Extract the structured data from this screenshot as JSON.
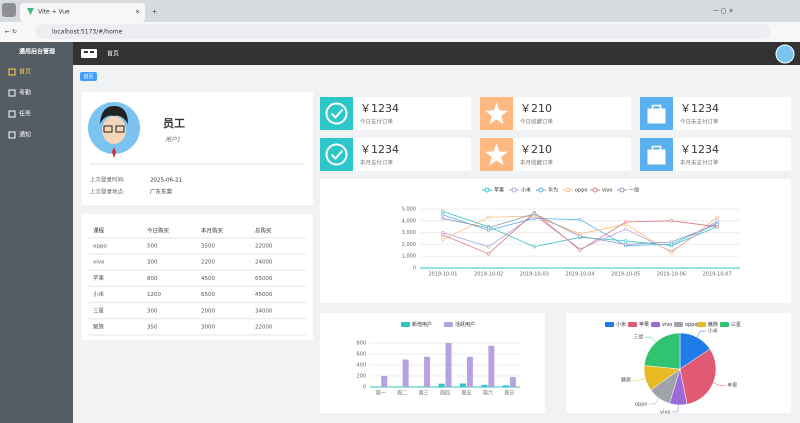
{
  "browser": {
    "tab_title": "Vite + Vue",
    "url": "localhost:5173/#/home"
  },
  "sidebar": {
    "title": "通用后台管理",
    "menu": [
      "首页",
      "考勤",
      "任务",
      "通知"
    ]
  },
  "header": {
    "breadcrumb": "首页"
  },
  "tag": "首页",
  "user": {
    "name": "员工",
    "role": "用户1",
    "info": [
      {
        "label": "上次登录时间:",
        "value": "2025-06-21"
      },
      {
        "label": "上次登录地点:",
        "value": "广东东莞"
      }
    ]
  },
  "table": {
    "columns": [
      "课程",
      "今日购买",
      "本月购买",
      "总购买"
    ],
    "rows": [
      [
        "oppo",
        500,
        3500,
        22000
      ],
      [
        "vivo",
        300,
        2200,
        24000
      ],
      [
        "苹果",
        800,
        4500,
        65000
      ],
      [
        "小米",
        1200,
        6500,
        45000
      ],
      [
        "三星",
        300,
        2000,
        34000
      ],
      [
        "魅族",
        350,
        3000,
        22000
      ]
    ]
  },
  "orders": [
    {
      "value": "￥1234",
      "label": "今日支付订单"
    },
    {
      "value": "￥210",
      "label": "今日收藏订单"
    },
    {
      "value": "￥1234",
      "label": "今日未支付订单"
    },
    {
      "value": "￥1234",
      "label": "本月支付订单"
    },
    {
      "value": "￥210",
      "label": "本月收藏订单"
    },
    {
      "value": "￥1234",
      "label": "本月未支付订单"
    }
  ],
  "chart_data": [
    {
      "type": "line",
      "categories": [
        "2019-10-01",
        "2019-10-02",
        "2019-10-03",
        "2019-10-04",
        "2019-10-05",
        "2019-10-06",
        "2019-10-07"
      ],
      "ylim": [
        0,
        5000
      ],
      "yticks": [
        0,
        {
          "value": 1000,
          "label": "1,000"
        },
        {
          "value": 2000,
          "label": "2,000"
        },
        {
          "value": 3000,
          "label": "3,000"
        },
        {
          "value": 4000,
          "label": "4,000"
        },
        {
          "value": 5000,
          "label": "5,000"
        }
      ],
      "grid": true,
      "series": [
        {
          "name": "苹果",
          "color": "#2ec7c9",
          "values": [
            4800,
            3500,
            1800,
            2600,
            2300,
            1900,
            3500
          ]
        },
        {
          "name": "小米",
          "color": "#b6a2de",
          "values": [
            3000,
            1800,
            4500,
            1600,
            3300,
            1400,
            4000
          ]
        },
        {
          "name": "华为",
          "color": "#5ab1ef",
          "values": [
            4500,
            3200,
            4200,
            4100,
            1900,
            2000,
            3800
          ]
        },
        {
          "name": "oppo",
          "color": "#ffb980",
          "values": [
            2400,
            4300,
            4400,
            2900,
            3700,
            1300,
            4300
          ]
        },
        {
          "name": "vivo",
          "color": "#d87a80",
          "values": [
            2800,
            1200,
            4700,
            1500,
            3900,
            4000,
            3500
          ]
        },
        {
          "name": "一加",
          "color": "#8d98b3",
          "values": [
            4200,
            3400,
            4600,
            2700,
            2000,
            2200,
            3700
          ]
        }
      ]
    },
    {
      "type": "bar",
      "categories": [
        "周一",
        "周二",
        "周三",
        "周四",
        "周五",
        "周六",
        "周日"
      ],
      "ylim": [
        0,
        800
      ],
      "yticks": [
        0,
        200,
        400,
        600,
        800
      ],
      "grid": true,
      "series": [
        {
          "name": "新增用户",
          "color": "#2ec7c9",
          "values": [
            5,
            10,
            12,
            60,
            65,
            40,
            30
          ]
        },
        {
          "name": "活跃用户",
          "color": "#b6a2de",
          "values": [
            200,
            500,
            550,
            800,
            550,
            750,
            180
          ]
        }
      ]
    },
    {
      "type": "pie",
      "categories": [
        "小米",
        "苹果",
        "vivo",
        "oppo",
        "魅族",
        "三星"
      ],
      "values": [
        2999,
        5999,
        1500,
        1999,
        2200,
        4500
      ],
      "colors": [
        "#1e7be8",
        "#df5a72",
        "#9b6ad8",
        "#a0a4aa",
        "#e8b923",
        "#2fc46f"
      ]
    }
  ]
}
